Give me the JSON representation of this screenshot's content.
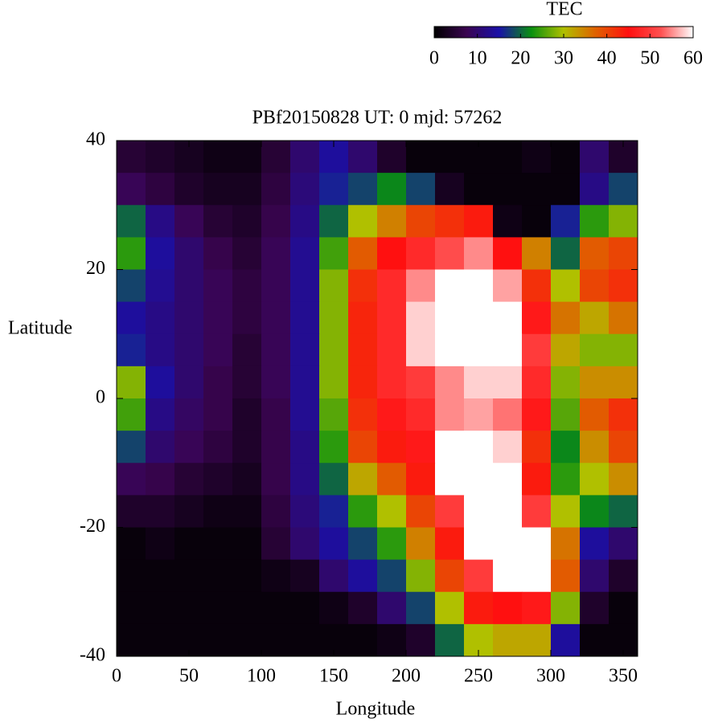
{
  "chart_data": {
    "type": "heatmap",
    "title": "PBf20150828  UT: 0  mjd: 57262",
    "xlabel": "Longitude",
    "ylabel": "Latitude",
    "xlim": [
      0,
      360
    ],
    "ylim": [
      -40,
      40
    ],
    "xticks": [
      0,
      50,
      100,
      150,
      200,
      250,
      300,
      350
    ],
    "yticks": [
      -40,
      -20,
      0,
      20,
      40
    ],
    "x": [
      10,
      30,
      50,
      70,
      90,
      110,
      130,
      150,
      170,
      190,
      210,
      230,
      250,
      270,
      290,
      310,
      330,
      350
    ],
    "y": [
      37.5,
      32.5,
      27.5,
      22.5,
      17.5,
      12.5,
      7.5,
      2.5,
      -2.5,
      -7.5,
      -12.5,
      -17.5,
      -22.5,
      -27.5,
      -32.5,
      -37.5
    ],
    "z": [
      [
        5,
        4,
        3,
        2,
        2,
        5,
        10,
        14,
        10,
        4,
        1,
        1,
        1,
        1,
        2,
        1,
        10,
        4
      ],
      [
        8,
        6,
        4,
        3,
        3,
        6,
        11,
        16,
        18,
        22,
        18,
        3,
        1,
        1,
        1,
        1,
        12,
        18
      ],
      [
        20,
        12,
        8,
        5,
        4,
        7,
        12,
        20,
        30,
        35,
        40,
        42,
        44,
        2,
        1,
        16,
        24,
        28
      ],
      [
        24,
        14,
        10,
        7,
        5,
        8,
        13,
        25,
        38,
        45,
        48,
        52,
        55,
        45,
        35,
        20,
        38,
        40
      ],
      [
        18,
        13,
        10,
        8,
        6,
        8,
        13,
        28,
        42,
        48,
        55,
        60,
        60,
        56,
        42,
        30,
        40,
        42
      ],
      [
        14,
        12,
        10,
        8,
        6,
        8,
        13,
        28,
        43,
        48,
        58,
        60,
        60,
        60,
        46,
        36,
        32,
        36
      ],
      [
        16,
        12,
        10,
        8,
        5,
        8,
        13,
        28,
        43,
        48,
        58,
        60,
        60,
        60,
        50,
        32,
        28,
        28
      ],
      [
        28,
        14,
        10,
        7,
        5,
        8,
        13,
        28,
        43,
        48,
        50,
        55,
        58,
        58,
        48,
        28,
        34,
        34
      ],
      [
        25,
        12,
        9,
        7,
        4,
        7,
        13,
        26,
        42,
        46,
        48,
        55,
        56,
        54,
        46,
        26,
        38,
        42
      ],
      [
        18,
        10,
        8,
        6,
        4,
        7,
        12,
        24,
        40,
        44,
        46,
        60,
        60,
        58,
        42,
        22,
        34,
        40
      ],
      [
        8,
        7,
        5,
        4,
        3,
        7,
        12,
        20,
        32,
        38,
        44,
        60,
        60,
        60,
        44,
        24,
        30,
        34
      ],
      [
        4,
        4,
        3,
        2,
        2,
        6,
        11,
        16,
        24,
        30,
        40,
        50,
        60,
        60,
        50,
        30,
        22,
        20
      ],
      [
        1,
        2,
        1,
        1,
        1,
        5,
        10,
        14,
        18,
        24,
        35,
        44,
        60,
        60,
        60,
        36,
        14,
        10
      ],
      [
        1,
        1,
        1,
        1,
        1,
        2,
        3,
        10,
        14,
        18,
        28,
        40,
        50,
        60,
        60,
        38,
        10,
        4
      ],
      [
        1,
        1,
        1,
        1,
        1,
        1,
        1,
        2,
        4,
        10,
        18,
        30,
        44,
        45,
        46,
        28,
        4,
        1
      ],
      [
        1,
        1,
        1,
        1,
        1,
        1,
        1,
        1,
        1,
        2,
        4,
        20,
        30,
        32,
        32,
        14,
        1,
        1
      ]
    ],
    "colorbar": {
      "label": "TEC",
      "lim": [
        0,
        60
      ],
      "ticks": [
        0,
        10,
        20,
        30,
        40,
        50,
        60
      ]
    },
    "colormap": [
      "#000000",
      "#3a0450",
      "#1a10a8",
      "#0a9010",
      "#b0c000",
      "#e06000",
      "#ff1010",
      "#ff5050",
      "#ffffff"
    ]
  }
}
